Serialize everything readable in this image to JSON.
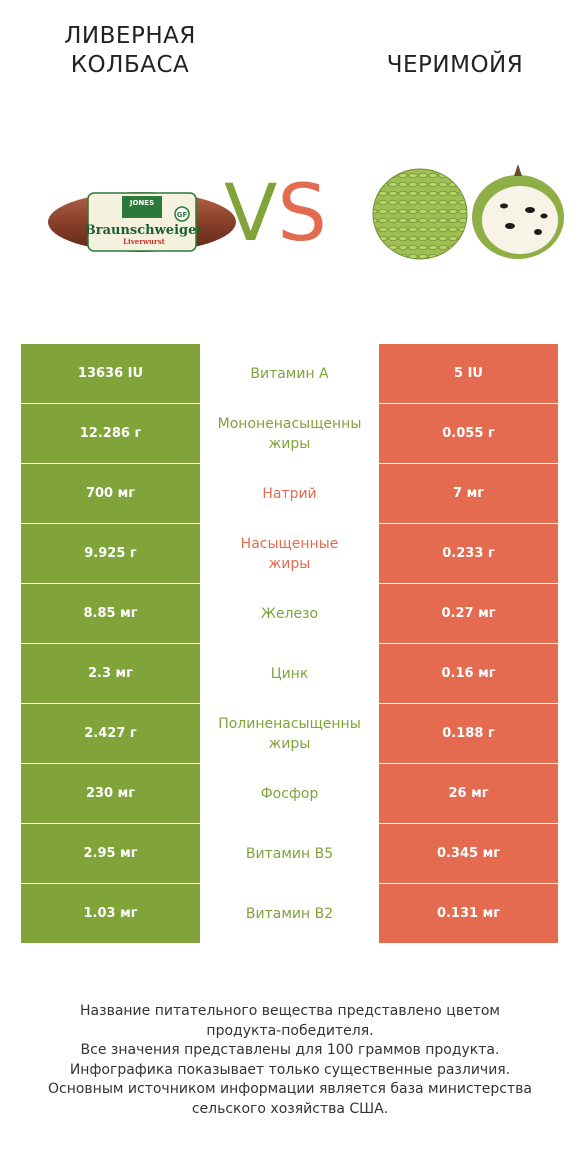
{
  "header": {
    "left_title_line1": "ЛИВЕРНАЯ",
    "left_title_line2": "КОЛБАСА",
    "right_title": "ЧЕРИМОЙЯ",
    "vs_v": "V",
    "vs_s": "S"
  },
  "product_label": {
    "brand": "JONES",
    "name": "Braunschweiger",
    "sub": "Liverwurst"
  },
  "colors": {
    "left_winner": "#80a33a",
    "right_winner": "#e46b4f"
  },
  "rows": [
    {
      "left": "13636 IU",
      "name_1": "Витамин A",
      "name_2": "",
      "right": "5 IU",
      "winner": "left"
    },
    {
      "left": "12.286 г",
      "name_1": "Мононенасыщенны",
      "name_2": "жиры",
      "right": "0.055 г",
      "winner": "left"
    },
    {
      "left": "700 мг",
      "name_1": "Натрий",
      "name_2": "",
      "right": "7 мг",
      "winner": "right"
    },
    {
      "left": "9.925 г",
      "name_1": "Насыщенные",
      "name_2": "жиры",
      "right": "0.233 г",
      "winner": "right"
    },
    {
      "left": "8.85 мг",
      "name_1": "Железо",
      "name_2": "",
      "right": "0.27 мг",
      "winner": "left"
    },
    {
      "left": "2.3 мг",
      "name_1": "Цинк",
      "name_2": "",
      "right": "0.16 мг",
      "winner": "left"
    },
    {
      "left": "2.427 г",
      "name_1": "Полиненасыщенны",
      "name_2": "жиры",
      "right": "0.188 г",
      "winner": "left"
    },
    {
      "left": "230 мг",
      "name_1": "Фосфор",
      "name_2": "",
      "right": "26 мг",
      "winner": "left"
    },
    {
      "left": "2.95 мг",
      "name_1": "Витамин B5",
      "name_2": "",
      "right": "0.345 мг",
      "winner": "left"
    },
    {
      "left": "1.03 мг",
      "name_1": "Витамин B2",
      "name_2": "",
      "right": "0.131 мг",
      "winner": "left"
    }
  ],
  "footer": {
    "line1": "Название питательного вещества представлено цветом",
    "line2": "продукта-победителя.",
    "line3": "Все значения представлены для 100 граммов продукта.",
    "line4": "Инфографика показывает только существенные различия.",
    "line5": "Основным источником информации является база министерства",
    "line6": "сельского хозяйства США."
  }
}
